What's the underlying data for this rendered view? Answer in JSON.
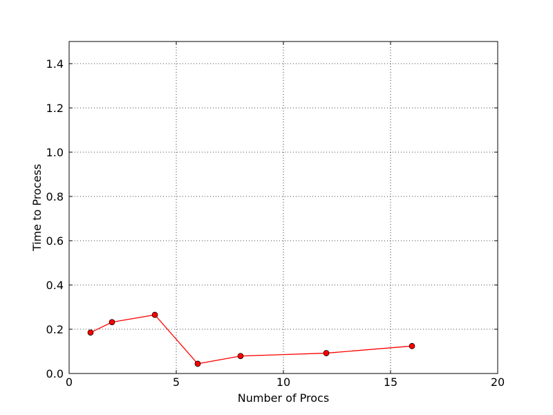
{
  "chart_data": {
    "type": "line",
    "title": "",
    "xlabel": "Number of Procs",
    "ylabel": "Time to Process",
    "xlim": [
      0,
      20
    ],
    "ylim": [
      0,
      1.5
    ],
    "grid": true,
    "x_ticks": [
      0,
      5,
      10,
      15,
      20
    ],
    "y_ticks": [
      0.0,
      0.2,
      0.4,
      0.6,
      0.8,
      1.0,
      1.2,
      1.4
    ],
    "x_tick_labels": [
      "0",
      "5",
      "10",
      "15",
      "20"
    ],
    "y_tick_labels": [
      "0.0",
      "0.2",
      "0.4",
      "0.6",
      "0.8",
      "1.0",
      "1.2",
      "1.4"
    ],
    "series": [
      {
        "line_color": "#ff0000",
        "marker_color": "#ff0000",
        "marker_edge": "#000000",
        "x": [
          1,
          2,
          4,
          6,
          8,
          12,
          16
        ],
        "y": [
          0.185,
          0.232,
          0.265,
          0.044,
          0.079,
          0.092,
          0.124
        ]
      }
    ]
  }
}
